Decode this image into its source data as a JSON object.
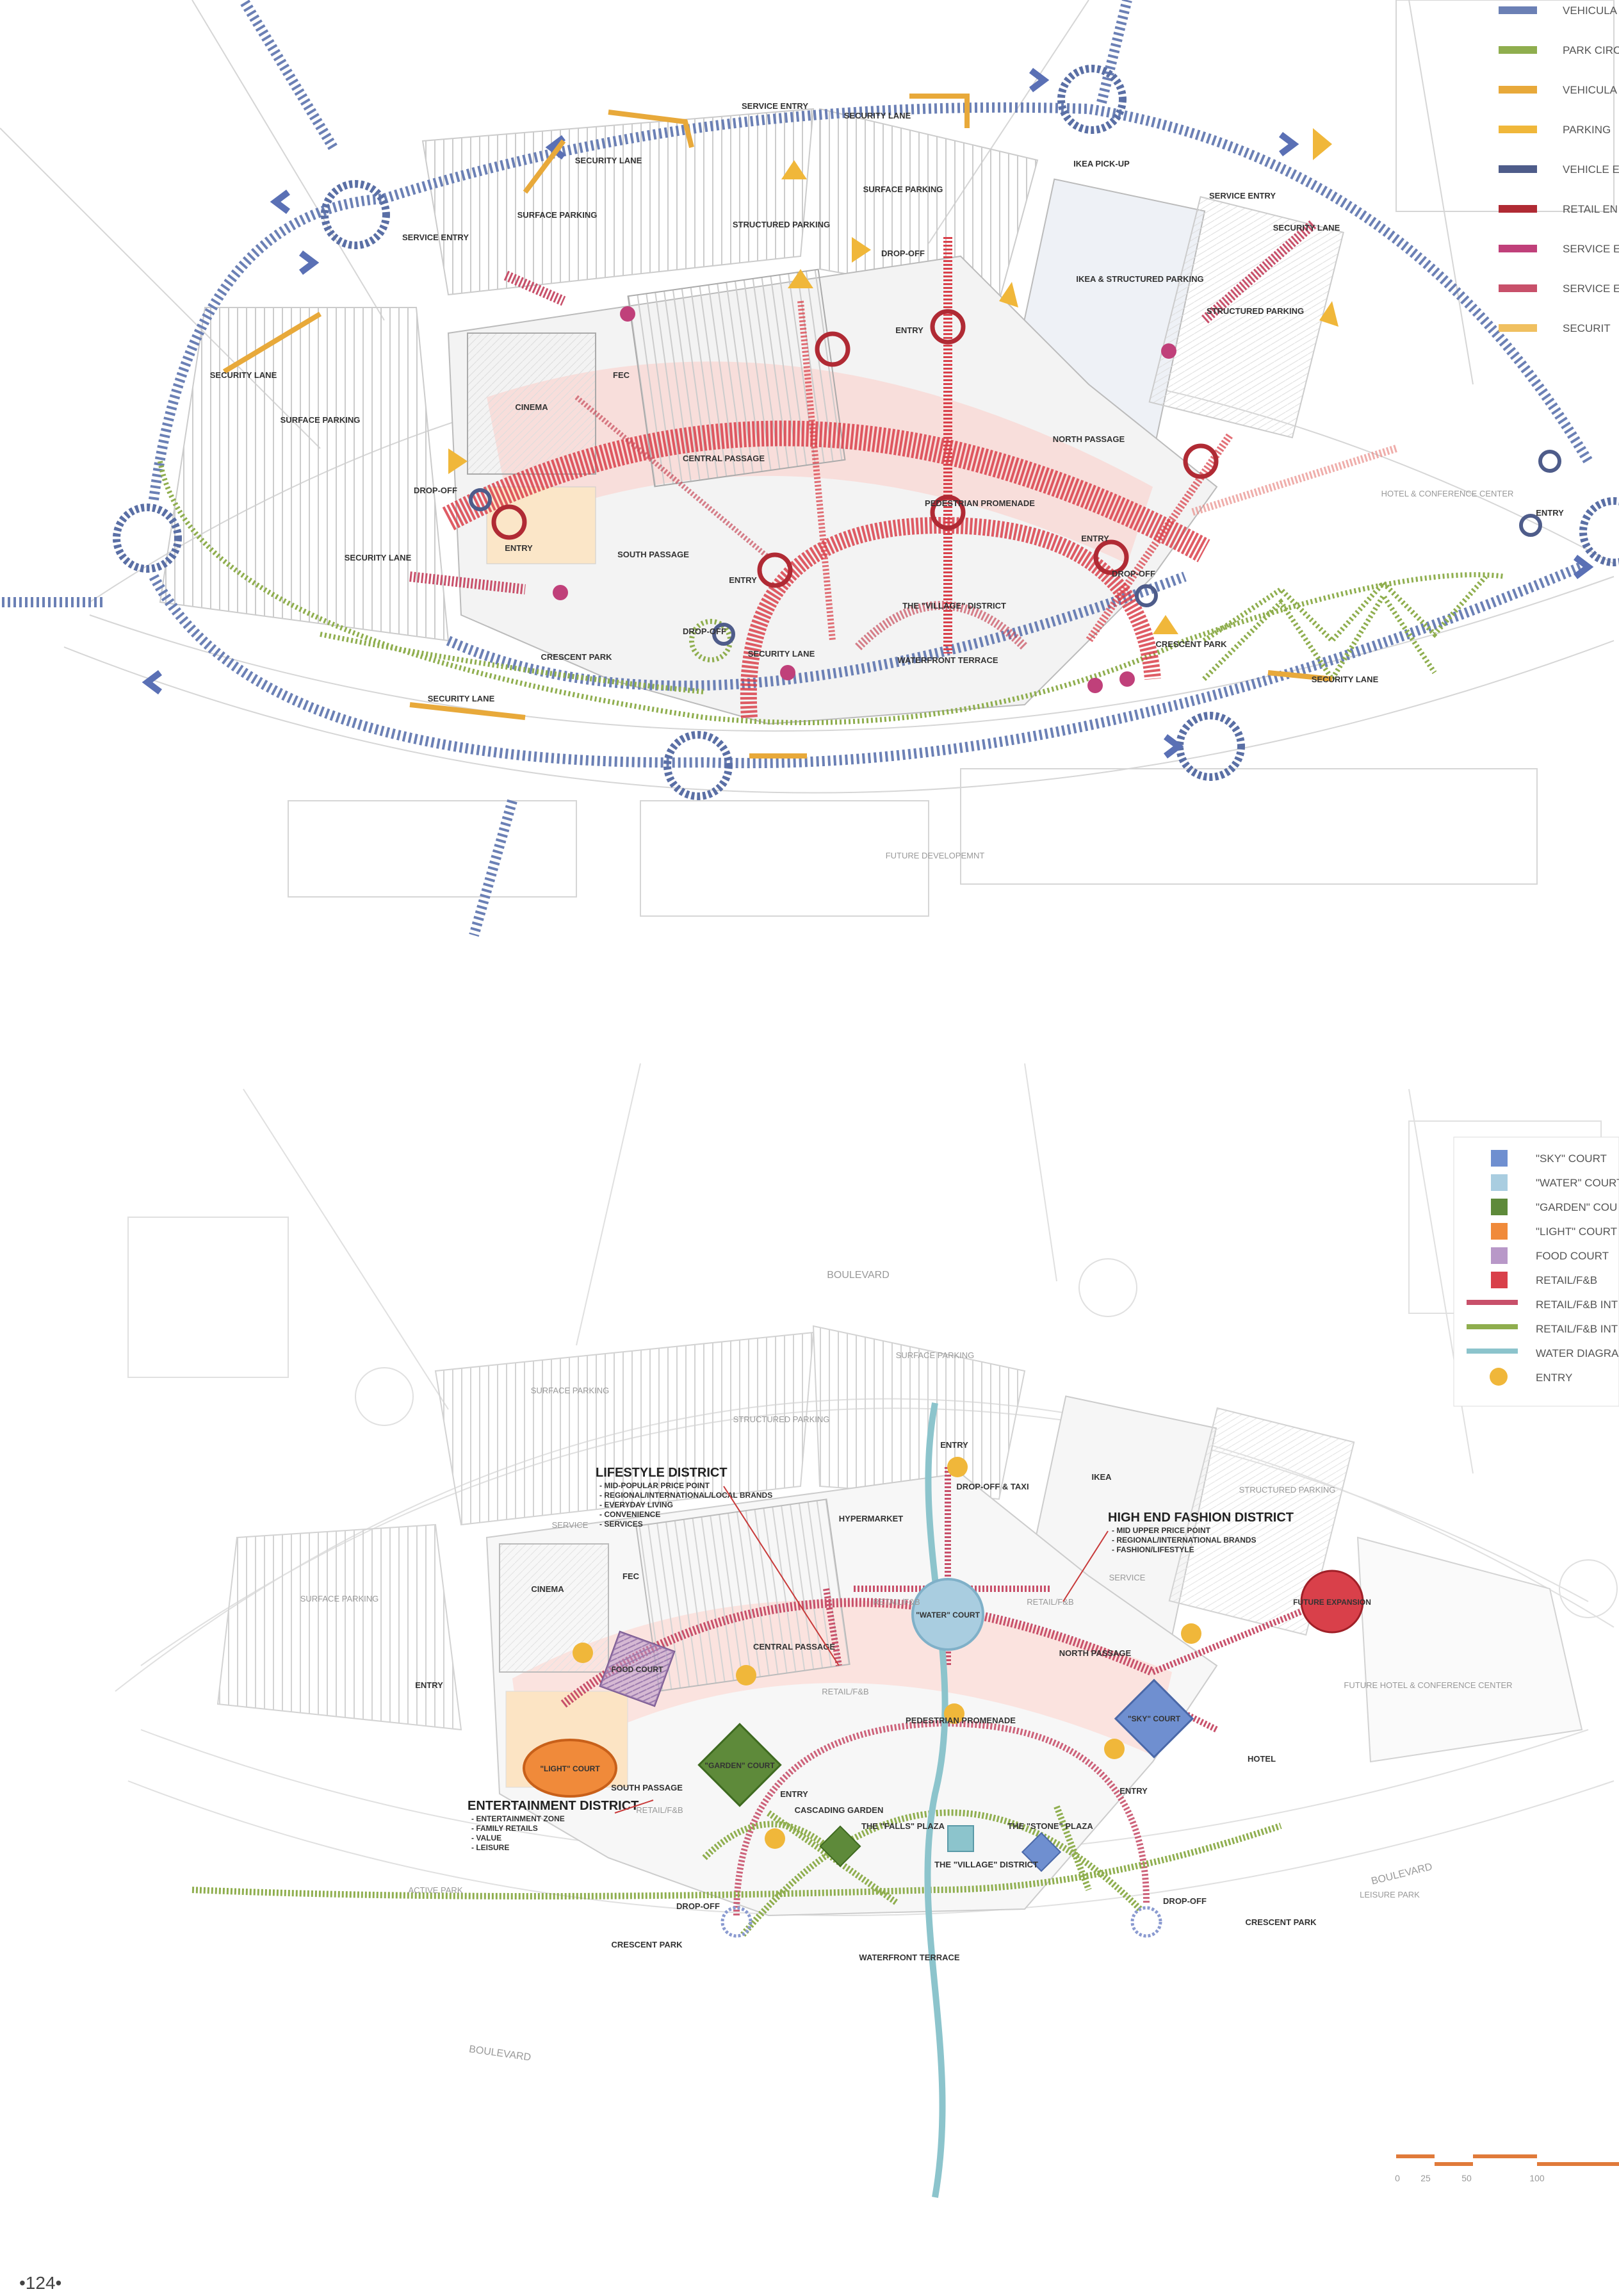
{
  "page": {
    "number": "•124•"
  },
  "plan1": {
    "labels": [
      "SERVICE ENTRY",
      "SECURITY LANE",
      "SECURITY LANE",
      "SURFACE PARKING",
      "SERVICE ENTRY",
      "SECURITY LANE",
      "SURFACE PARKING",
      "STRUCTURED PARKING",
      "SURFACE PARKING",
      "IKEA PICK-UP",
      "IKEA & STRUCTURED PARKING",
      "SERVICE ENTRY",
      "SECURITY LANE",
      "STRUCTURED PARKING",
      "DROP-OFF",
      "ENTRY",
      "FEC",
      "CINEMA",
      "CENTRAL PASSAGE",
      "NORTH PASSAGE",
      "HOTEL & CONFERENCE CENTER",
      "ENTRY",
      "DROP-OFF",
      "ENTRY",
      "SECURITY LANE",
      "SOUTH PASSAGE",
      "ENTRY",
      "PEDESTRIAN PROMENADE",
      "ENTRY",
      "DROP-OFF",
      "THE \"VILLAGE\" DISTRICT",
      "CRESCENT PARK",
      "CRESCENT PARK",
      "DROP-OFF",
      "WATERFRONT TERRACE",
      "SECURITY LANE",
      "SECURITY LANE",
      "SECURITY LANE",
      "FUTURE DEVELOPEMNT"
    ],
    "legend": [
      {
        "label": "VEHICULA",
        "color": "#6b80b5"
      },
      {
        "label": "PARK CIRC",
        "color": "#8fae4e"
      },
      {
        "label": "VEHICULA",
        "color": "#e8a93a"
      },
      {
        "label": "PARKING",
        "color": "#f0b73a"
      },
      {
        "label": "VEHICLE E",
        "color": "#4e5c8a"
      },
      {
        "label": "RETAIL EN",
        "color": "#b02a34"
      },
      {
        "label": "SERVICE E",
        "color": "#c0407a"
      },
      {
        "label": "SERVICE E",
        "color": "#c8506a"
      },
      {
        "label": "SECURIT",
        "color": "#f0c060"
      }
    ],
    "scale": [
      "0",
      "25",
      "50",
      "100"
    ]
  },
  "plan2": {
    "labels": [
      "BOULEVARD",
      "SURFACE PARKING",
      "SURFACE PARKING",
      "STRUCTURED PARKING",
      "ENTRY",
      "DROP-OFF & TAXI",
      "IKEA",
      "STRUCTURED PARKING",
      "HYPERMARKET",
      "SERVICE",
      "FEC",
      "CINEMA",
      "SURFACE PARKING",
      "SERVICE",
      "ENTRY",
      "CENTRAL PASSAGE",
      "NORTH PASSAGE",
      "RETAIL/F&B",
      "RETAIL/F&B",
      "RETAIL/F&B",
      "PEDESTRIAN PROMENADE",
      "SOUTH PASSAGE",
      "ENTRY",
      "ENTRY",
      "HOTEL",
      "FUTURE HOTEL & CONFERENCE CENTER",
      "THE \"FALLS\" PLAZA",
      "CASCADING GARDEN",
      "THE \"STONE\" PLAZA",
      "THE \"VILLAGE\" DISTRICT",
      "DROP-OFF",
      "DROP-OFF",
      "ACTIVE PARK",
      "CRESCENT PARK",
      "CRESCENT PARK",
      "LEISURE PARK",
      "WATERFRONT TERRACE",
      "BOULEVARD",
      "BOULEVARD",
      "RETAIL/F&B"
    ],
    "courts": {
      "water": "\"WATER\" COURT",
      "sky": "\"SKY\" COURT",
      "garden": "\"GARDEN\" COURT",
      "light": "\"LIGHT\" COURT",
      "food": "FOOD COURT",
      "future": "FUTURE EXPANSION"
    },
    "districts": {
      "lifestyle": {
        "title": "LIFESTYLE DISTRICT",
        "items": [
          "- MID-POPULAR PRICE POINT",
          "- REGIONAL/INTERNATIONAL/LOCAL BRANDS",
          "- EVERYDAY LIVING",
          "- CONVENIENCE",
          "- SERVICES"
        ]
      },
      "fashion": {
        "title": "HIGH END FASHION DISTRICT",
        "items": [
          "- MID UPPER PRICE POINT",
          "- REGIONAL/INTERNATIONAL BRANDS",
          "- FASHION/LIFESTYLE"
        ]
      },
      "entertainment": {
        "title": "ENTERTAINMENT DISTRICT",
        "items": [
          "- ENTERTAINMENT ZONE",
          "- FAMILY RETAILS",
          "- VALUE",
          "- LEISURE"
        ]
      }
    },
    "legend": [
      {
        "label": "\"SKY\" COURT",
        "color": "#6f8fd0"
      },
      {
        "label": "\"WATER\" COURT",
        "color": "#a9cde0"
      },
      {
        "label": "\"GARDEN\" COU",
        "color": "#5e8a3a"
      },
      {
        "label": "\"LIGHT\" COURT",
        "color": "#f08a3a"
      },
      {
        "label": "FOOD COURT",
        "color": "#b898c8"
      },
      {
        "label": "RETAIL/F&B",
        "color": "#d9404a"
      },
      {
        "label": "RETAIL/F&B INT",
        "color": "#c8506a"
      },
      {
        "label": "RETAIL/F&B INT",
        "color": "#8fae4e"
      },
      {
        "label": "WATER DIAGRA",
        "color": "#8cc4cc"
      },
      {
        "label": "ENTRY",
        "color": "#f0b73a"
      }
    ],
    "scale": [
      "0",
      "25",
      "50",
      "100"
    ]
  }
}
